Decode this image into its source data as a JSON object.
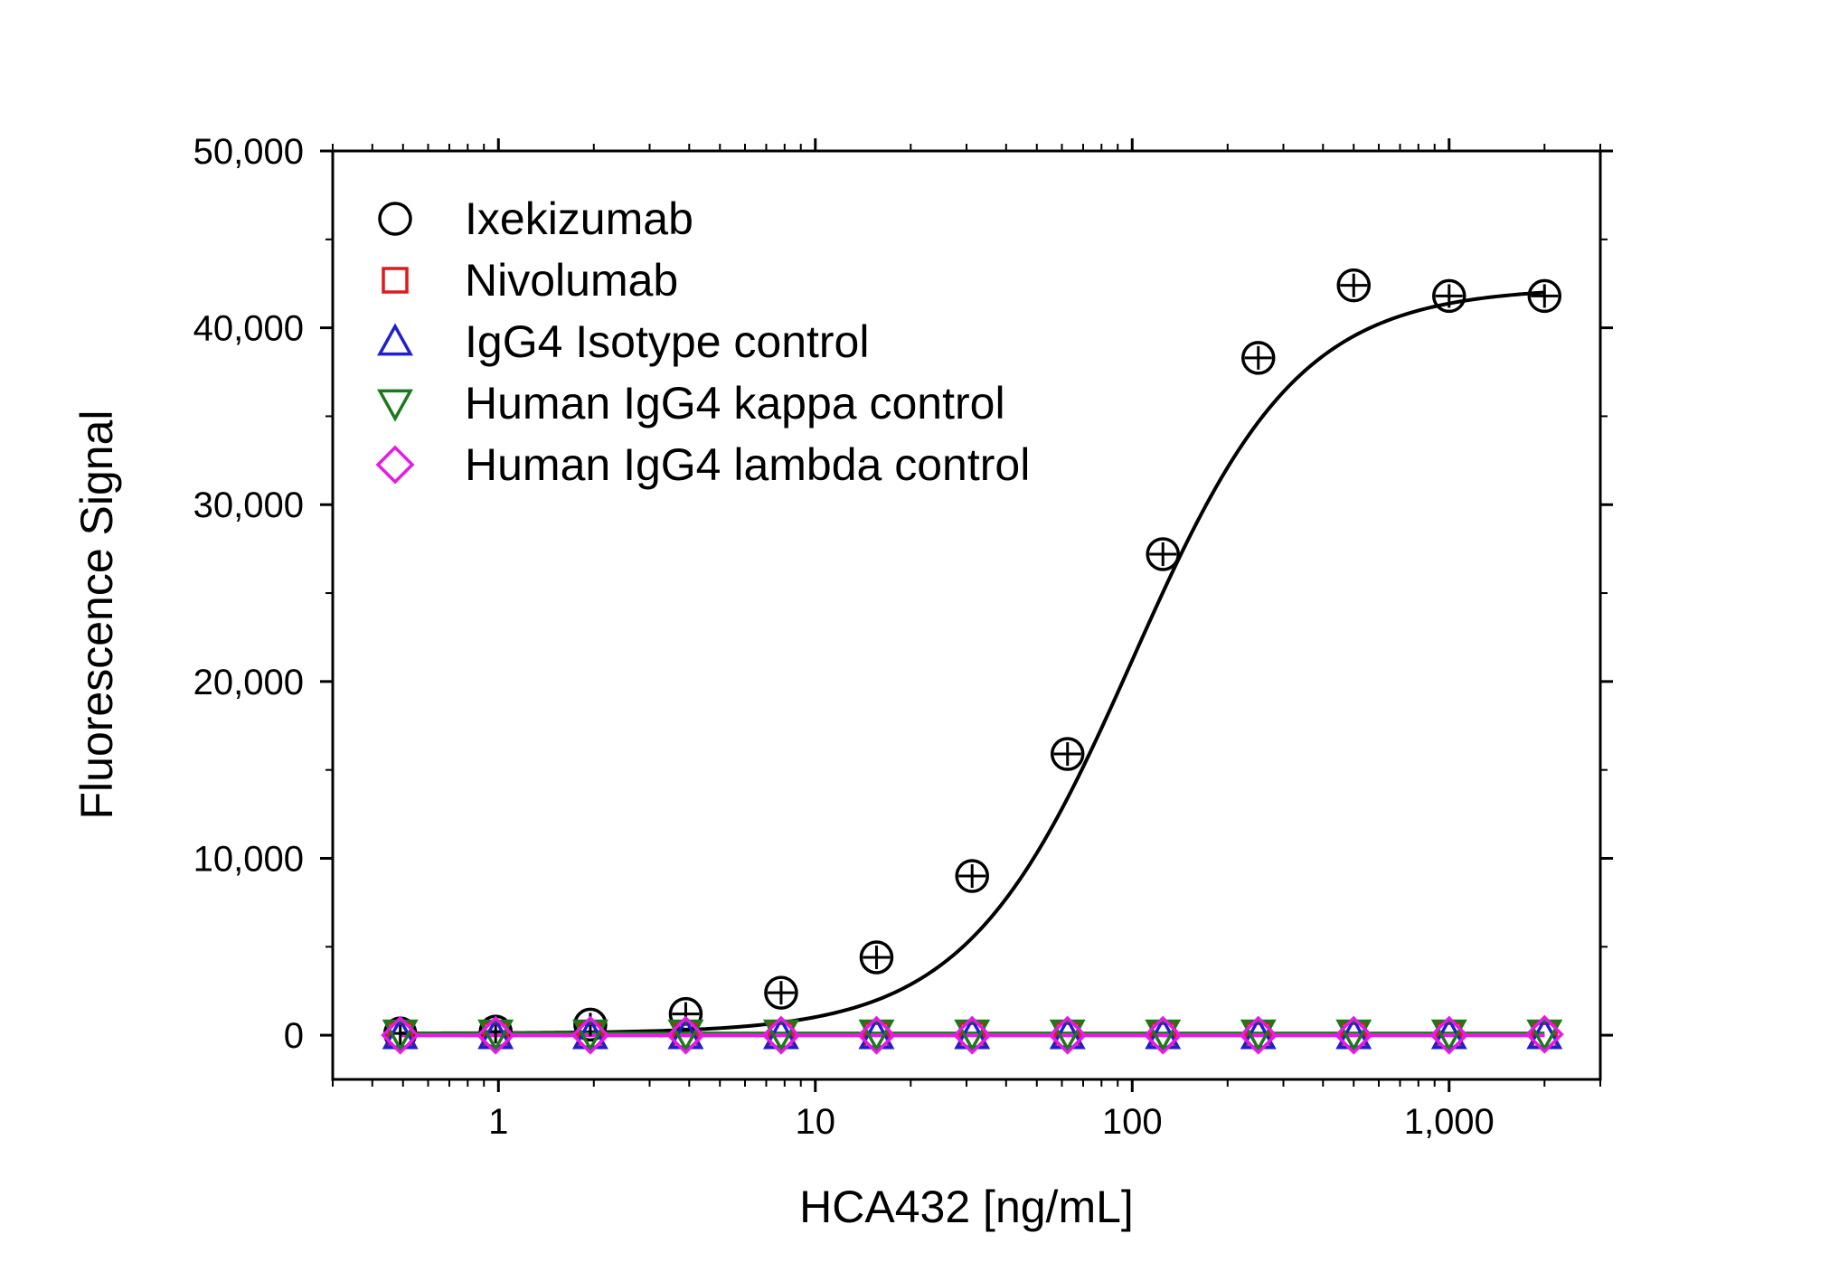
{
  "chart_data": {
    "type": "scatter",
    "xlabel": "HCA432 [ng/mL]",
    "ylabel": "Fluorescence Signal",
    "xscale": "log",
    "xlim": [
      0.3,
      3000
    ],
    "ylim": [
      -2500,
      50000
    ],
    "x_ticks": [
      {
        "value": 1,
        "label": "1"
      },
      {
        "value": 10,
        "label": "10"
      },
      {
        "value": 100,
        "label": "100"
      },
      {
        "value": 1000,
        "label": "1,000"
      }
    ],
    "y_ticks": [
      {
        "value": 0,
        "label": "0"
      },
      {
        "value": 10000,
        "label": "10,000"
      },
      {
        "value": 20000,
        "label": "20,000"
      },
      {
        "value": 30000,
        "label": "30,000"
      },
      {
        "value": 40000,
        "label": "40,000"
      },
      {
        "value": 50000,
        "label": "50,000"
      }
    ],
    "grid": false,
    "legend_position": "top-left",
    "series": [
      {
        "name": "Ixekizumab",
        "marker": "circle",
        "color": "#000000",
        "x": [
          0.49,
          0.98,
          1.95,
          3.9,
          7.8,
          15.6,
          31.25,
          62.5,
          125,
          250,
          500,
          1000,
          2000
        ],
        "y": [
          100,
          200,
          600,
          1200,
          2400,
          4400,
          9000,
          15900,
          27200,
          38300,
          42400,
          41800,
          41800
        ],
        "fit_curve": {
          "bottom": 100,
          "top": 42300,
          "ec50": 100,
          "hill": 1.65
        }
      },
      {
        "name": "Nivolumab",
        "marker": "square",
        "color": "#e0191a",
        "x": [
          0.49,
          0.98,
          1.95,
          3.9,
          7.8,
          15.6,
          31.25,
          62.5,
          125,
          250,
          500,
          1000,
          2000
        ],
        "y": [
          0,
          0,
          0,
          0,
          0,
          0,
          0,
          0,
          0,
          0,
          0,
          0,
          0
        ]
      },
      {
        "name": "IgG4 Isotype control",
        "marker": "triangle-up",
        "color": "#1f1fcf",
        "x": [
          0.49,
          0.98,
          1.95,
          3.9,
          7.8,
          15.6,
          31.25,
          62.5,
          125,
          250,
          500,
          1000,
          2000
        ],
        "y": [
          0,
          0,
          0,
          0,
          0,
          0,
          0,
          0,
          0,
          0,
          0,
          0,
          0
        ]
      },
      {
        "name": "Human IgG4 kappa control",
        "marker": "triangle-down",
        "color": "#1a7a1a",
        "x": [
          0.49,
          0.98,
          1.95,
          3.9,
          7.8,
          15.6,
          31.25,
          62.5,
          125,
          250,
          500,
          1000,
          2000
        ],
        "y": [
          100,
          100,
          100,
          100,
          100,
          100,
          100,
          100,
          100,
          100,
          100,
          100,
          100
        ]
      },
      {
        "name": "Human IgG4 lambda control",
        "marker": "diamond",
        "color": "#e619e6",
        "x": [
          0.49,
          0.98,
          1.95,
          3.9,
          7.8,
          15.6,
          31.25,
          62.5,
          125,
          250,
          500,
          1000,
          2000
        ],
        "y": [
          0,
          0,
          0,
          0,
          0,
          0,
          0,
          0,
          0,
          0,
          0,
          0,
          50
        ]
      }
    ]
  }
}
